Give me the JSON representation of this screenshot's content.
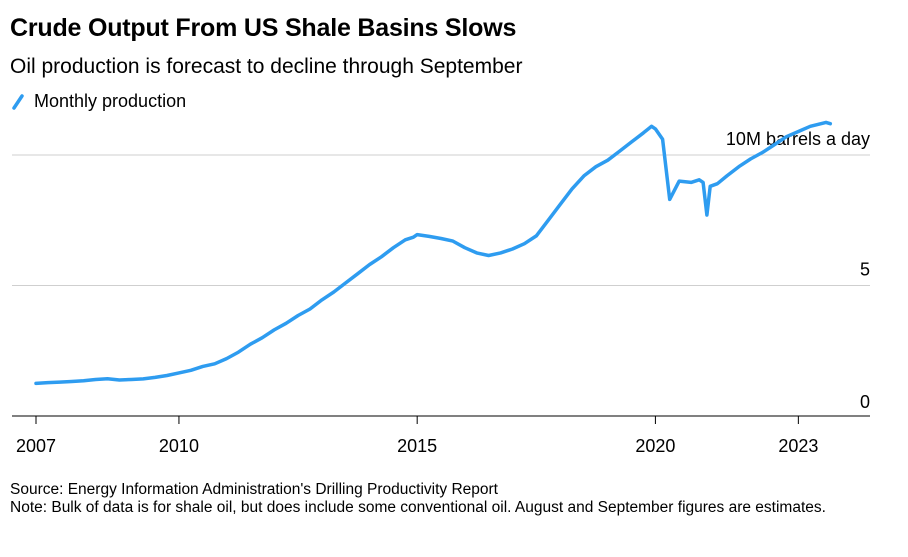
{
  "header": {
    "title": "Crude Output From US Shale Basins Slows",
    "subtitle": "Oil production is forecast to decline through September"
  },
  "legend": {
    "label": "Monthly production",
    "color": "#2e9cf0"
  },
  "chart_data": {
    "type": "line",
    "title": "Crude Output From US Shale Basins Slows",
    "subtitle": "Oil production is forecast to decline through September",
    "unit_label": "10M barrels a day",
    "xlim": [
      2007.0,
      2024.0
    ],
    "ylim": [
      0,
      10
    ],
    "y_ticks": [
      {
        "value": 10,
        "label": "10M barrels a day"
      },
      {
        "value": 5,
        "label": "5"
      },
      {
        "value": 0,
        "label": "0"
      }
    ],
    "x_ticks": [
      {
        "value": 2007,
        "label": "2007"
      },
      {
        "value": 2010,
        "label": "2010"
      },
      {
        "value": 2015,
        "label": "2015"
      },
      {
        "value": 2020,
        "label": "2020"
      },
      {
        "value": 2023,
        "label": "2023"
      }
    ],
    "grid": "horizontal",
    "series": [
      {
        "name": "Monthly production",
        "color": "#2e9cf0",
        "x": [
          2007.0,
          2007.25,
          2007.5,
          2007.75,
          2008.0,
          2008.25,
          2008.5,
          2008.75,
          2009.0,
          2009.25,
          2009.5,
          2009.75,
          2010.0,
          2010.25,
          2010.5,
          2010.75,
          2011.0,
          2011.25,
          2011.5,
          2011.75,
          2012.0,
          2012.25,
          2012.5,
          2012.75,
          2013.0,
          2013.25,
          2013.5,
          2013.75,
          2014.0,
          2014.25,
          2014.5,
          2014.75,
          2014.92,
          2015.0,
          2015.25,
          2015.5,
          2015.75,
          2016.0,
          2016.25,
          2016.5,
          2016.75,
          2017.0,
          2017.25,
          2017.5,
          2017.75,
          2018.0,
          2018.25,
          2018.5,
          2018.75,
          2019.0,
          2019.25,
          2019.5,
          2019.75,
          2019.92,
          2020.0,
          2020.15,
          2020.3,
          2020.5,
          2020.75,
          2020.92,
          2021.0,
          2021.08,
          2021.15,
          2021.3,
          2021.5,
          2021.75,
          2022.0,
          2022.25,
          2022.5,
          2022.75,
          2023.0,
          2023.25,
          2023.58,
          2023.67
        ],
        "values": [
          1.25,
          1.28,
          1.3,
          1.32,
          1.35,
          1.4,
          1.43,
          1.38,
          1.4,
          1.42,
          1.48,
          1.55,
          1.65,
          1.75,
          1.9,
          2.0,
          2.2,
          2.45,
          2.75,
          3.0,
          3.3,
          3.55,
          3.85,
          4.1,
          4.45,
          4.75,
          5.1,
          5.45,
          5.8,
          6.1,
          6.45,
          6.75,
          6.85,
          6.95,
          6.88,
          6.8,
          6.7,
          6.45,
          6.25,
          6.15,
          6.25,
          6.4,
          6.6,
          6.9,
          7.5,
          8.1,
          8.7,
          9.2,
          9.55,
          9.8,
          10.15,
          10.5,
          10.85,
          11.1,
          11.0,
          10.6,
          8.3,
          9.0,
          8.95,
          9.05,
          8.95,
          7.7,
          8.8,
          8.9,
          9.2,
          9.55,
          9.85,
          10.1,
          10.4,
          10.7,
          10.9,
          11.1,
          11.25,
          11.2
        ]
      }
    ]
  },
  "footer": {
    "source": "Source: Energy Information Administration's Drilling Productivity Report",
    "note": "Note: Bulk of data is for shale oil, but does include some conventional oil. August and September figures are estimates."
  }
}
